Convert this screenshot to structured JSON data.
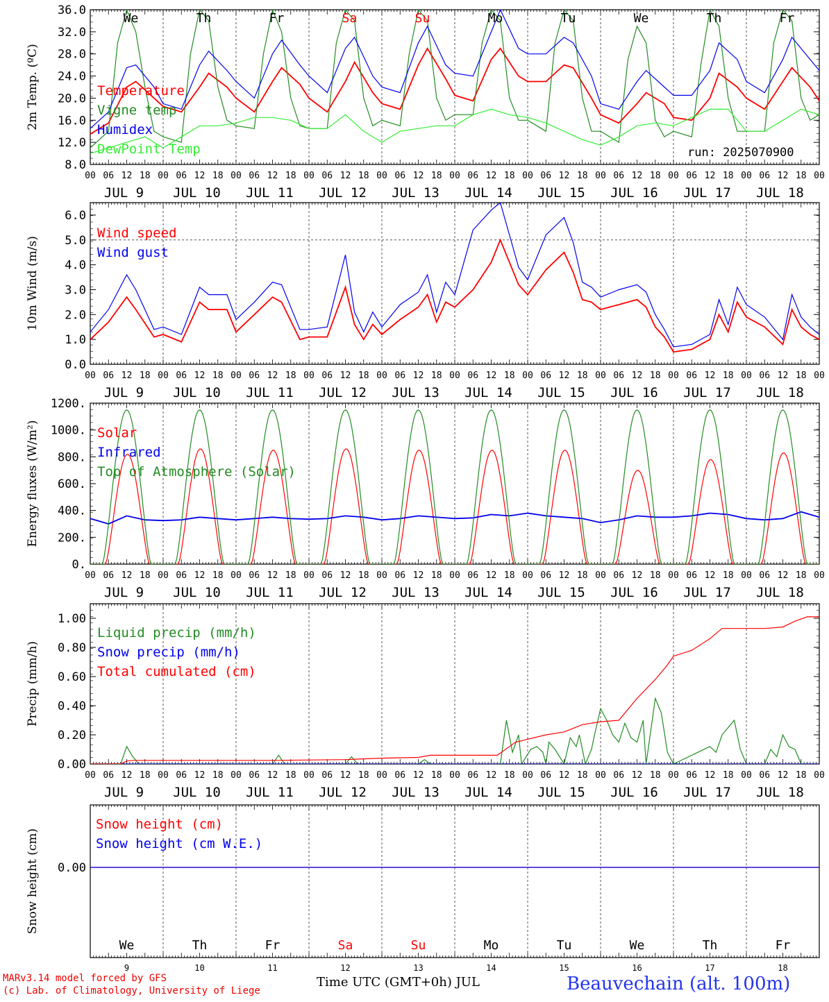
{
  "run_label": "run: 2025070900",
  "x_axis": {
    "days": [
      9,
      10,
      11,
      12,
      13,
      14,
      15,
      16,
      17,
      18
    ],
    "month": "JUL",
    "hour_ticks": [
      "00",
      "06",
      "12",
      "18"
    ],
    "final_tick": "00",
    "weekdays": [
      "We",
      "Th",
      "Fr",
      "Sa",
      "Su",
      "Mo",
      "Tu",
      "We",
      "Th",
      "Fr"
    ],
    "weekend_color": "#ff0000",
    "title": "Time UTC (GMT+0h) JUL"
  },
  "footer": {
    "credit1": "MARv3.14 model forced by GFS",
    "credit2": "(c) Lab. of Climatology, University of Liege",
    "station": "Beauvechain (alt. 100m)",
    "station_color": "#2233ee"
  },
  "chart_data": [
    {
      "type": "line",
      "ylabel": "2m Temp. (ºC)",
      "ylim": [
        8,
        36
      ],
      "yticks": [
        "8.0",
        "12.0",
        "16.0",
        "20.0",
        "24.0",
        "28.0",
        "32.0",
        "36.0"
      ],
      "grid": "vertical dashed at 00 UTC",
      "x_unit": "hours since JUL 9 00 UTC",
      "series": [
        {
          "name": "Temperature",
          "color": "#ff0000",
          "x": [
            0,
            6,
            12,
            15,
            21,
            24,
            30,
            36,
            39,
            45,
            48,
            54,
            60,
            63,
            69,
            72,
            78,
            84,
            87,
            93,
            96,
            102,
            108,
            111,
            117,
            120,
            126,
            132,
            135,
            141,
            144,
            150,
            156,
            159,
            165,
            168,
            174,
            180,
            183,
            189,
            192,
            198,
            204,
            207,
            213,
            216,
            222,
            228,
            231,
            237,
            240
          ],
          "y": [
            13.5,
            15.5,
            22,
            23,
            20,
            18.5,
            17.5,
            22,
            24.5,
            22,
            20,
            17.5,
            23,
            25.5,
            22.5,
            20,
            17.5,
            23,
            26.5,
            21,
            19,
            18,
            26,
            29,
            23.5,
            20.5,
            19.5,
            27,
            29,
            24,
            23,
            23,
            26,
            25.5,
            20,
            17,
            15.5,
            19,
            21,
            19,
            16.5,
            16,
            20,
            24.5,
            22,
            20,
            18,
            23,
            25.5,
            22,
            19.5
          ]
        },
        {
          "name": "Vigne temp",
          "color": "#228b22",
          "x": [
            0,
            6,
            9,
            12,
            15,
            18,
            21,
            24,
            30,
            33,
            36,
            39,
            42,
            45,
            48,
            54,
            57,
            60,
            63,
            66,
            69,
            72,
            78,
            81,
            84,
            87,
            90,
            93,
            96,
            102,
            105,
            108,
            111,
            114,
            117,
            120,
            126,
            129,
            132,
            135,
            138,
            141,
            144,
            150,
            153,
            156,
            159,
            162,
            165,
            168,
            174,
            177,
            180,
            183,
            186,
            189,
            192,
            198,
            201,
            204,
            207,
            210,
            213,
            216,
            222,
            225,
            228,
            231,
            234,
            237,
            240
          ],
          "y": [
            11,
            14,
            30,
            36,
            32,
            22,
            14,
            13,
            12,
            28,
            36,
            34,
            22,
            16,
            15,
            14.5,
            28,
            36,
            32,
            20,
            15,
            14.5,
            14.5,
            30,
            36,
            34,
            20,
            15,
            16,
            15,
            28,
            36,
            34,
            20,
            16,
            17,
            17,
            30,
            36,
            34,
            20,
            16,
            16,
            14,
            30,
            36,
            34,
            20,
            14,
            14,
            12,
            27,
            33,
            30,
            16,
            13,
            14,
            13,
            26,
            36,
            33,
            20,
            14,
            14,
            14,
            30,
            36,
            34,
            20,
            16,
            17
          ]
        },
        {
          "name": "Humidex",
          "color": "#0000ee",
          "x": [
            0,
            6,
            12,
            15,
            21,
            24,
            30,
            36,
            39,
            45,
            48,
            54,
            60,
            63,
            69,
            72,
            78,
            84,
            87,
            93,
            96,
            102,
            108,
            111,
            117,
            120,
            126,
            132,
            135,
            141,
            144,
            150,
            156,
            159,
            165,
            168,
            174,
            180,
            183,
            189,
            192,
            198,
            204,
            207,
            213,
            216,
            222,
            228,
            231,
            237,
            240
          ],
          "y": [
            14.5,
            17.5,
            25.5,
            26,
            22,
            19,
            18,
            26,
            28.5,
            25,
            23,
            20,
            28,
            30.5,
            26,
            24,
            21,
            29,
            31,
            24,
            22,
            21,
            30,
            33,
            26,
            24.5,
            24,
            32,
            36,
            29,
            28,
            28,
            31,
            30,
            24,
            19,
            18,
            23,
            25,
            22,
            20.5,
            20.5,
            25,
            30,
            27,
            23,
            21,
            27,
            31,
            27,
            25
          ]
        },
        {
          "name": "DewPoint Temp",
          "color": "#33ee33",
          "x": [
            0,
            12,
            18,
            24,
            30,
            36,
            42,
            48,
            54,
            60,
            66,
            72,
            78,
            84,
            90,
            96,
            102,
            108,
            114,
            120,
            126,
            132,
            138,
            144,
            150,
            156,
            162,
            168,
            174,
            180,
            186,
            192,
            198,
            204,
            210,
            216,
            222,
            228,
            234,
            240
          ],
          "y": [
            10,
            12,
            13,
            11,
            13,
            15,
            15,
            15.5,
            16.5,
            16.5,
            16,
            14.5,
            14.5,
            17,
            14,
            12,
            14,
            14.5,
            15,
            15,
            17,
            18,
            17,
            16.5,
            15.5,
            14,
            12.5,
            11.5,
            13,
            15,
            15.5,
            15,
            16.5,
            18,
            18,
            14,
            14,
            16,
            18,
            17
          ]
        }
      ]
    },
    {
      "type": "line",
      "ylabel": "10m Wind (m/s)",
      "ylim": [
        0,
        6.5
      ],
      "yticks": [
        "0.0",
        "1.0",
        "2.0",
        "3.0",
        "4.0",
        "5.0",
        "6.0"
      ],
      "reference_line": 5.0,
      "series": [
        {
          "name": "Wind speed",
          "color": "#ff0000",
          "x": [
            0,
            6,
            12,
            15,
            21,
            24,
            30,
            36,
            39,
            45,
            48,
            54,
            60,
            63,
            69,
            72,
            78,
            84,
            87,
            90,
            93,
            96,
            102,
            108,
            111,
            114,
            117,
            120,
            126,
            132,
            135,
            141,
            144,
            150,
            156,
            159,
            162,
            165,
            168,
            174,
            180,
            183,
            186,
            189,
            192,
            198,
            204,
            207,
            210,
            213,
            216,
            222,
            228,
            231,
            234,
            237,
            240
          ],
          "y": [
            1.0,
            1.7,
            2.7,
            2.2,
            1.1,
            1.2,
            0.9,
            2.5,
            2.2,
            2.2,
            1.3,
            2.0,
            2.7,
            2.5,
            1.0,
            1.1,
            1.1,
            3.1,
            1.6,
            1.0,
            1.6,
            1.2,
            1.8,
            2.3,
            2.8,
            1.7,
            2.5,
            2.3,
            3.0,
            4.1,
            5.0,
            3.2,
            2.8,
            3.8,
            4.5,
            3.7,
            2.6,
            2.5,
            2.2,
            2.4,
            2.6,
            2.3,
            1.5,
            1.1,
            0.5,
            0.6,
            1.0,
            2.0,
            1.3,
            2.5,
            1.9,
            1.5,
            0.8,
            2.2,
            1.5,
            1.2,
            1.0
          ]
        },
        {
          "name": "Wind gust",
          "color": "#0000ee",
          "x": [
            0,
            6,
            12,
            15,
            21,
            24,
            30,
            36,
            39,
            45,
            48,
            54,
            60,
            63,
            69,
            72,
            78,
            84,
            87,
            90,
            93,
            96,
            102,
            108,
            111,
            114,
            117,
            120,
            126,
            132,
            135,
            141,
            144,
            150,
            156,
            159,
            162,
            165,
            168,
            174,
            180,
            183,
            186,
            189,
            192,
            198,
            204,
            207,
            210,
            213,
            216,
            222,
            228,
            231,
            234,
            237,
            240
          ],
          "y": [
            1.3,
            2.2,
            3.6,
            3.0,
            1.4,
            1.5,
            1.2,
            3.1,
            2.8,
            2.8,
            1.8,
            2.5,
            3.3,
            3.2,
            1.4,
            1.4,
            1.5,
            4.4,
            2.1,
            1.3,
            2.1,
            1.5,
            2.4,
            2.9,
            3.6,
            2.1,
            3.3,
            2.8,
            5.4,
            6.2,
            6.5,
            3.9,
            3.4,
            5.2,
            5.9,
            4.9,
            3.3,
            3.1,
            2.7,
            3.0,
            3.2,
            2.9,
            2.0,
            1.4,
            0.7,
            0.8,
            1.2,
            2.6,
            1.6,
            3.1,
            2.4,
            1.9,
            1.0,
            2.8,
            1.9,
            1.5,
            1.2
          ]
        }
      ]
    },
    {
      "type": "line",
      "ylabel": "Energy fluxes (W/m²)",
      "ylim": [
        0,
        1200
      ],
      "yticks": [
        "0.",
        "200.",
        "400.",
        "600.",
        "800.",
        "1000.",
        "1200."
      ],
      "series": [
        {
          "name": "Solar",
          "color": "#ff0000",
          "peaks": [
            820,
            860,
            850,
            860,
            850,
            850,
            850,
            700,
            780,
            830
          ]
        },
        {
          "name": "Infrared",
          "color": "#0000ee",
          "x": [
            0,
            6,
            12,
            18,
            24,
            30,
            36,
            42,
            48,
            54,
            60,
            66,
            72,
            78,
            84,
            90,
            96,
            102,
            108,
            114,
            120,
            126,
            132,
            138,
            144,
            150,
            156,
            162,
            168,
            174,
            180,
            186,
            192,
            198,
            204,
            210,
            216,
            222,
            228,
            234,
            240
          ],
          "y": [
            340,
            300,
            360,
            330,
            325,
            330,
            350,
            340,
            330,
            340,
            350,
            340,
            335,
            340,
            360,
            350,
            330,
            340,
            360,
            350,
            340,
            345,
            370,
            360,
            380,
            360,
            350,
            340,
            310,
            330,
            360,
            350,
            350,
            360,
            380,
            370,
            340,
            330,
            340,
            390,
            350
          ]
        },
        {
          "name": "Top of Atmosphere (Solar)",
          "color": "#228b22",
          "peaks": [
            1150,
            1150,
            1150,
            1150,
            1150,
            1150,
            1150,
            1150,
            1150,
            1150
          ]
        }
      ]
    },
    {
      "type": "line",
      "ylabel": "Precip (mm/h)",
      "ylim": [
        0,
        1.1
      ],
      "yticks": [
        "0.00",
        "0.20",
        "0.40",
        "0.60",
        "0.80",
        "1.00"
      ],
      "series": [
        {
          "name": "Liquid precip (mm/h)",
          "color": "#228b22",
          "x": [
            0,
            10,
            12,
            14,
            16,
            60,
            62,
            64,
            84,
            86,
            88,
            108,
            110,
            112,
            135,
            137,
            139,
            141,
            142,
            145,
            147,
            149,
            150,
            151,
            153,
            156,
            158,
            160,
            161,
            163,
            165,
            166,
            168,
            170,
            172,
            174,
            176,
            178,
            180,
            182,
            183,
            186,
            188,
            190,
            192,
            204,
            206,
            208,
            212,
            214,
            216,
            222,
            224,
            226,
            228,
            230,
            232,
            234,
            240
          ],
          "y": [
            0,
            0,
            0.12,
            0.05,
            0,
            0,
            0.06,
            0,
            0,
            0.05,
            0,
            0,
            0.03,
            0,
            0,
            0.3,
            0.08,
            0.2,
            0,
            0.1,
            0.12,
            0.08,
            0,
            0.15,
            0.1,
            0,
            0.18,
            0.12,
            0.2,
            0,
            0.1,
            0.2,
            0.38,
            0.3,
            0.2,
            0.15,
            0.28,
            0.18,
            0.15,
            0.3,
            0,
            0.45,
            0.35,
            0.08,
            0,
            0.12,
            0.08,
            0.2,
            0.3,
            0.1,
            0,
            0,
            0.1,
            0.05,
            0.2,
            0.12,
            0.1,
            0,
            0
          ]
        },
        {
          "name": "Snow precip (mm/h)",
          "color": "#0000ee",
          "x": [
            0,
            240
          ],
          "y": [
            0,
            0
          ]
        },
        {
          "name": "Total cumulated (cm)",
          "color": "#ff0000",
          "x": [
            0,
            10,
            12,
            14,
            60,
            84,
            96,
            108,
            112,
            134,
            138,
            140,
            144,
            150,
            156,
            162,
            168,
            174,
            180,
            186,
            190,
            192,
            198,
            204,
            208,
            216,
            222,
            228,
            232,
            236,
            240
          ],
          "y": [
            0,
            0,
            0.02,
            0.025,
            0.025,
            0.03,
            0.04,
            0.045,
            0.06,
            0.06,
            0.12,
            0.15,
            0.17,
            0.2,
            0.22,
            0.27,
            0.29,
            0.3,
            0.45,
            0.58,
            0.68,
            0.74,
            0.78,
            0.86,
            0.93,
            0.93,
            0.93,
            0.94,
            0.98,
            1.01,
            1.01
          ]
        }
      ]
    },
    {
      "type": "line",
      "ylabel": "Snow height (cm)",
      "yticks": [
        "0.00"
      ],
      "series": [
        {
          "name": "Snow height (cm)",
          "color": "#ff0000",
          "x": [
            0,
            240
          ],
          "y": [
            0,
            0
          ]
        },
        {
          "name": "Snow height (cm W.E.)",
          "color": "#0000ee",
          "x": [
            0,
            240
          ],
          "y": [
            0,
            0
          ]
        }
      ]
    }
  ]
}
